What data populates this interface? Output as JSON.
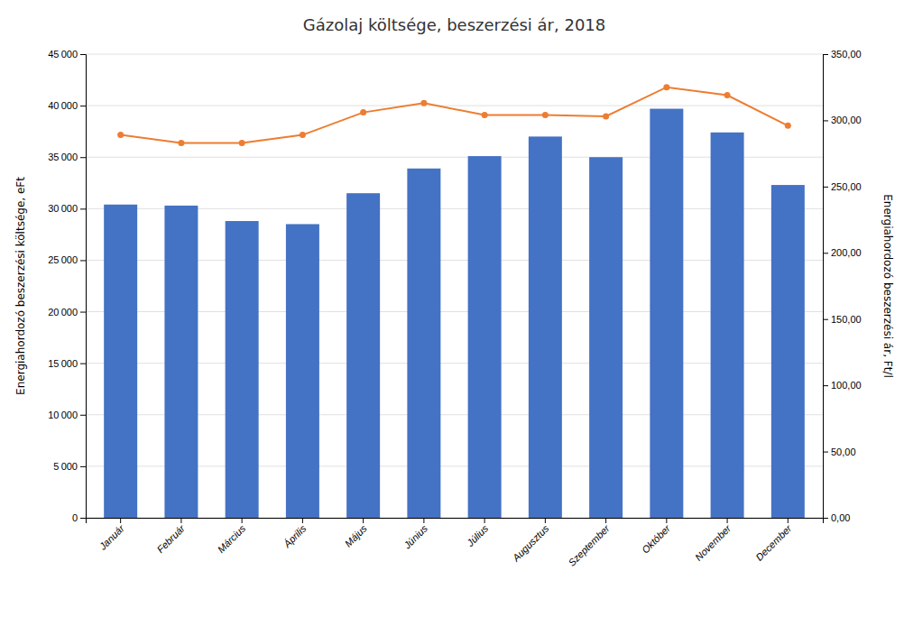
{
  "chart_data": {
    "type": "bar",
    "title": "Gázolaj költsége, beszerzési ár, 2018",
    "categories": [
      "Január",
      "Február",
      "Március",
      "Április",
      "Május",
      "Június",
      "Július",
      "Augusztus",
      "Szeptember",
      "Október",
      "November",
      "December"
    ],
    "series": [
      {
        "type": "bar",
        "color": "#4472C4",
        "values": [
          30400,
          30300,
          28800,
          28500,
          31500,
          33900,
          35100,
          37000,
          35000,
          39700,
          37400,
          32300
        ]
      },
      {
        "type": "line",
        "color": "#ED7D31",
        "marker": "circle",
        "axis": "y2",
        "values": [
          289,
          283,
          283,
          289,
          306,
          313,
          304,
          304,
          303,
          325,
          319,
          296
        ]
      }
    ],
    "ylabel": "Energiahordozó beszerzési költsége, eFt",
    "y2label": "Energiahordozó beszerzési ár, Ft/l",
    "ylim": [
      0,
      45000
    ],
    "yticks": [
      0,
      {
        "value": 5000,
        "label": "5 000"
      },
      {
        "value": 10000,
        "label": "10 000"
      },
      {
        "value": 15000,
        "label": "15 000"
      },
      {
        "value": 20000,
        "label": "20 000"
      },
      {
        "value": 25000,
        "label": "25 000"
      },
      {
        "value": 30000,
        "label": "30 000"
      },
      {
        "value": 35000,
        "label": "35 000"
      },
      {
        "value": 40000,
        "label": "40 000"
      },
      {
        "value": 45000,
        "label": "45 000"
      }
    ],
    "y2lim": [
      0,
      350
    ],
    "y2ticks": [
      {
        "value": 0,
        "label": "0,00"
      },
      {
        "value": 50,
        "label": "50,00"
      },
      {
        "value": 100,
        "label": "100,00"
      },
      {
        "value": 150,
        "label": "150,00"
      },
      {
        "value": 200,
        "label": "200,00"
      },
      {
        "value": 250,
        "label": "250,00"
      },
      {
        "value": 300,
        "label": "300,00"
      },
      {
        "value": 350,
        "label": "350,00"
      }
    ],
    "grid": true
  }
}
